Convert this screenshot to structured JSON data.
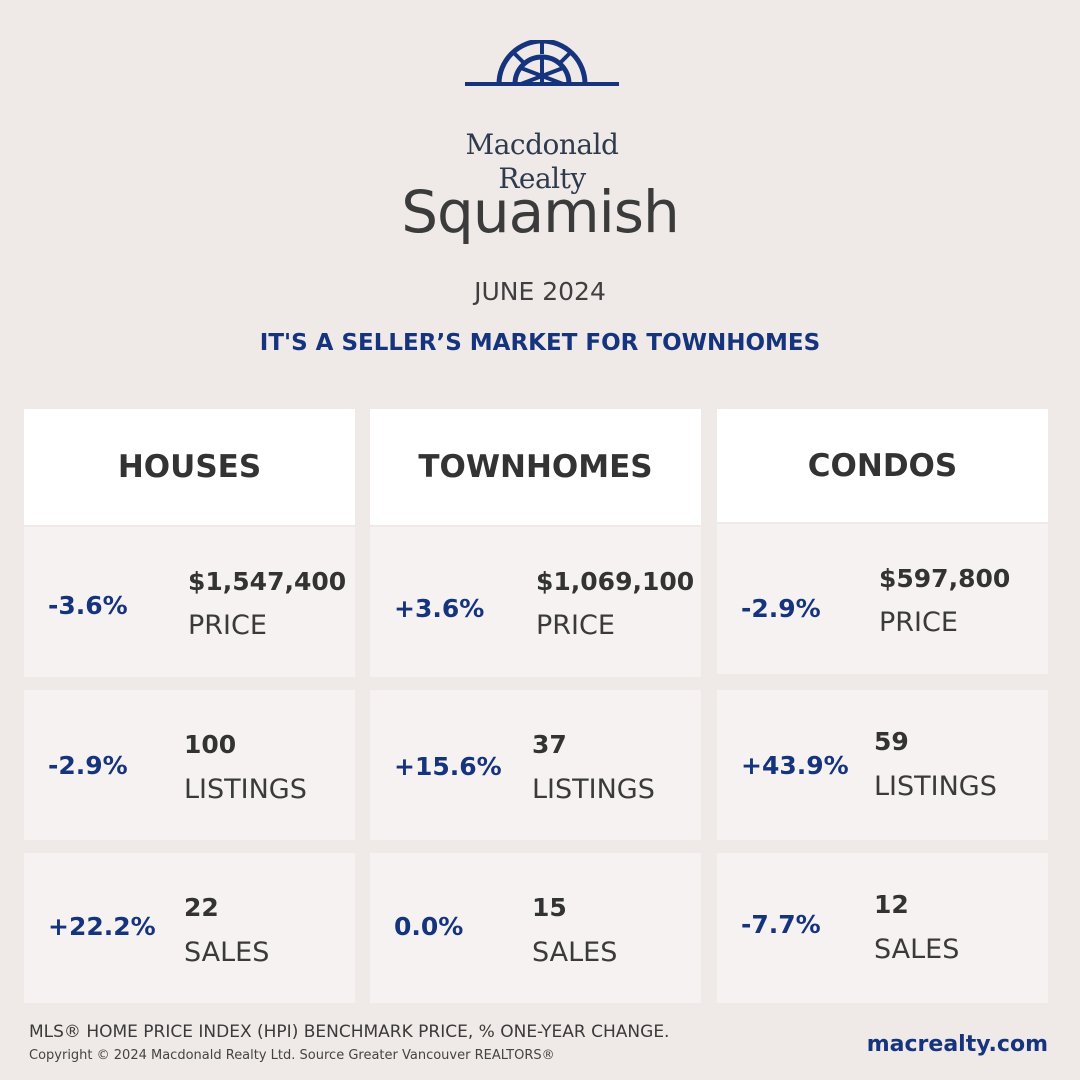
{
  "brand": {
    "line1": "Macdonald",
    "line2": "Realty",
    "color": "#15347d"
  },
  "city": "Squamish",
  "period": "JUNE 2024",
  "headline": "IT'S A SELLER’S MARKET FOR TOWNHOMES",
  "columns": [
    {
      "title": "HOUSES",
      "price": {
        "pct": "-3.6%",
        "value": "$1,547,400",
        "label": "PRICE"
      },
      "listings": {
        "pct": "-2.9%",
        "value": "100",
        "label": "LISTINGS"
      },
      "sales": {
        "pct": "+22.2%",
        "value": "22",
        "label": "SALES"
      }
    },
    {
      "title": "TOWNHOMES",
      "price": {
        "pct": "+3.6%",
        "value": "$1,069,100",
        "label": "PRICE"
      },
      "listings": {
        "pct": "+15.6%",
        "value": "37",
        "label": "LISTINGS"
      },
      "sales": {
        "pct": "0.0%",
        "value": "15",
        "label": "SALES"
      }
    },
    {
      "title": "CONDOS",
      "price": {
        "pct": "-2.9%",
        "value": "$597,800",
        "label": "PRICE"
      },
      "listings": {
        "pct": "+43.9%",
        "value": "59",
        "label": "LISTINGS"
      },
      "sales": {
        "pct": "-7.7%",
        "value": "12",
        "label": "SALES"
      }
    }
  ],
  "footer": {
    "note": "MLS® HOME PRICE INDEX (HPI) BENCHMARK PRICE, % ONE-YEAR CHANGE.",
    "copyright": "Copyright © 2024 Macdonald Realty Ltd. Source Greater Vancouver REALTORS®",
    "website": "macrealty.com"
  }
}
